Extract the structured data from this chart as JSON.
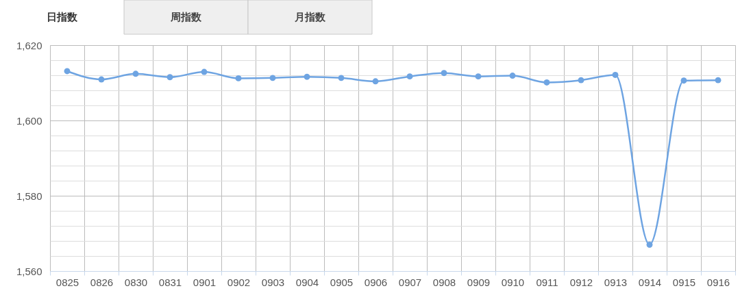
{
  "chart_data": {
    "type": "line",
    "annotations": [
      "日指数",
      "周指数",
      "月指数"
    ],
    "categories": [
      "0825",
      "0826",
      "0830",
      "0831",
      "0901",
      "0902",
      "0903",
      "0904",
      "0905",
      "0906",
      "0907",
      "0908",
      "0909",
      "0910",
      "0911",
      "0912",
      "0913",
      "0914",
      "0915",
      "0916"
    ],
    "series": [
      {
        "color": "#6ea4e2",
        "values": [
          1613.1,
          1610.9,
          1612.4,
          1611.5,
          1612.9,
          1611.2,
          1611.3,
          1611.6,
          1611.3,
          1610.4,
          1611.7,
          1612.6,
          1611.7,
          1611.9,
          1610.1,
          1610.7,
          1612.1,
          1567.0,
          1610.6,
          1610.7
        ]
      }
    ],
    "ylim": [
      1560,
      1620
    ],
    "yticks": [
      {
        "value": 1560,
        "label": "1,560"
      },
      {
        "value": 1564,
        "label": null
      },
      {
        "value": 1568,
        "label": null
      },
      {
        "value": 1572,
        "label": null
      },
      {
        "value": 1576,
        "label": null
      },
      {
        "value": 1580,
        "label": "1,580"
      },
      {
        "value": 1584,
        "label": null
      },
      {
        "value": 1588,
        "label": null
      },
      {
        "value": 1592,
        "label": null
      },
      {
        "value": 1596,
        "label": null
      },
      {
        "value": 1600,
        "label": "1,600"
      },
      {
        "value": 1604,
        "label": null
      },
      {
        "value": 1608,
        "label": null
      },
      {
        "value": 1612,
        "label": null
      },
      {
        "value": 1616,
        "label": null
      },
      {
        "value": 1620,
        "label": "1,620"
      }
    ],
    "grid": true,
    "marker": "circle",
    "line_style": "solid"
  }
}
